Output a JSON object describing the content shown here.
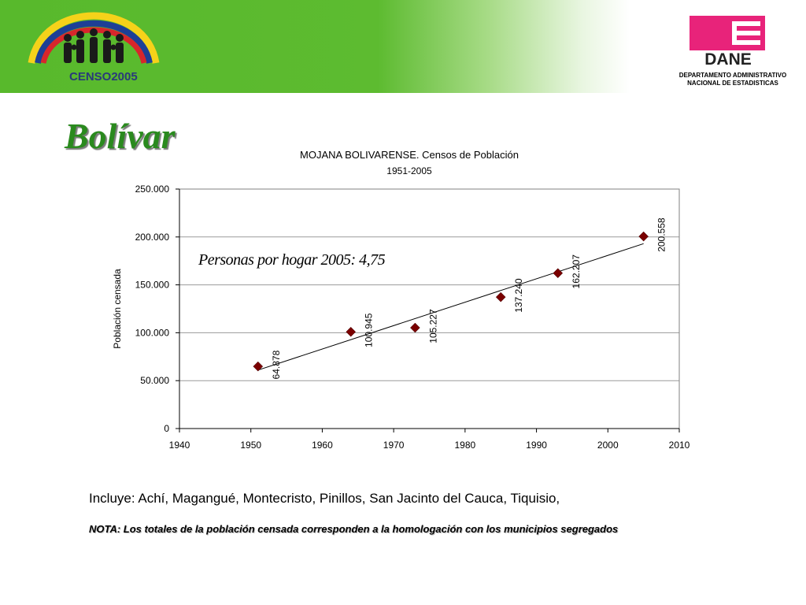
{
  "header": {
    "censo_logo_text": "CENSO2005",
    "dane_logo_text": "DANE",
    "dane_caption_line1": "DEPARTAMENTO ADMINISTRATIVO",
    "dane_caption_line2": "NACIONAL DE ESTADISTICAS",
    "colors": {
      "banner_green": "#5dbb30",
      "dane_pink": "#e8237a"
    }
  },
  "page_title": "Bolívar",
  "chart_data": {
    "type": "scatter",
    "title_line1": "MOJANA BOLIVARENSE. Censos de Población",
    "title_line2": "1951-2005",
    "xlabel": "",
    "ylabel": "Población censada",
    "xlim": [
      1940,
      2010
    ],
    "ylim": [
      0,
      250000
    ],
    "x_ticks": [
      1940,
      1950,
      1960,
      1970,
      1980,
      1990,
      2000,
      2010
    ],
    "x_tick_labels": [
      "1940",
      "1950",
      "1960",
      "1970",
      "1980",
      "1990",
      "2000",
      "2010"
    ],
    "y_ticks": [
      0,
      50000,
      100000,
      150000,
      200000,
      250000
    ],
    "y_tick_labels": [
      "0",
      "50.000",
      "100.000",
      "150.000",
      "200.000",
      "250.000"
    ],
    "grid": "horizontal",
    "legend": "none",
    "points": [
      {
        "x": 1951,
        "y": 64878,
        "label": "64.878"
      },
      {
        "x": 1964,
        "y": 100945,
        "label": "100.945"
      },
      {
        "x": 1973,
        "y": 105227,
        "label": "105.227"
      },
      {
        "x": 1985,
        "y": 137240,
        "label": "137.240"
      },
      {
        "x": 1993,
        "y": 162207,
        "label": "162.207"
      },
      {
        "x": 2005,
        "y": 200558,
        "label": "200.558"
      }
    ],
    "trendline": {
      "type": "linear",
      "x_start": 1951,
      "y_start": 61000,
      "x_end": 2005,
      "y_end": 193000
    },
    "annotation": "Personas por hogar 2005: 4,75",
    "marker_color": "#7a0000"
  },
  "footnotes": {
    "includes": "Incluye: Achí, Magangué, Montecristo, Pinillos, San Jacinto del Cauca, Tiquisio,",
    "note": "NOTA: Los totales de la población censada corresponden a la homologación con los municipios segregados"
  }
}
